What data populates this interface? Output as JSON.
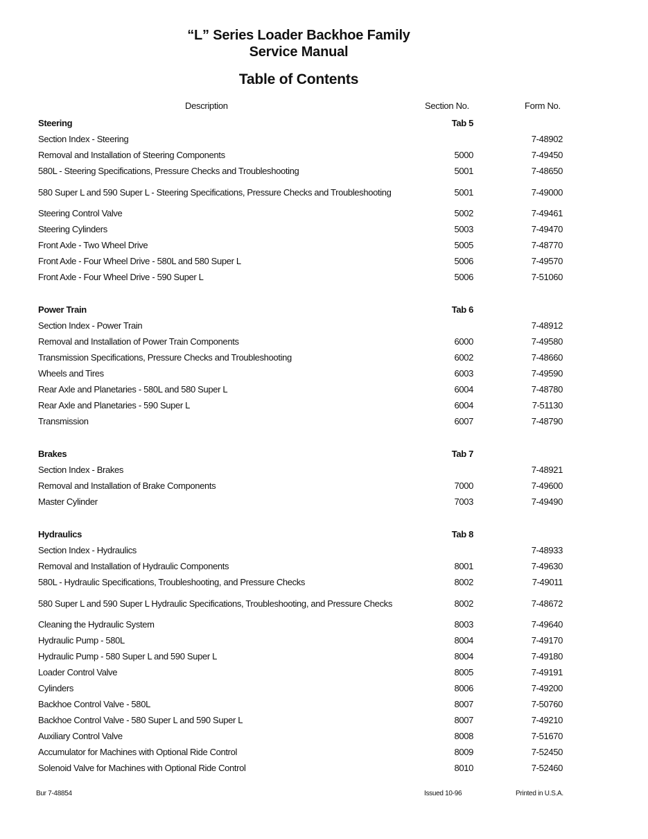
{
  "title": {
    "line1": "“L” Series Loader Backhoe Family",
    "line2": "Service Manual",
    "subtitle": "Table of Contents"
  },
  "columns": {
    "description": "Description",
    "section": "Section No.",
    "form": "Form No."
  },
  "sections": [
    {
      "name": "Steering",
      "tab": "Tab 5",
      "items": [
        {
          "desc": "Section Index - Steering",
          "section": "",
          "form": "7-48902"
        },
        {
          "desc": "Removal and Installation of Steering Components",
          "section": "5000",
          "form": "7-49450"
        },
        {
          "desc": "580L - Steering Specifications, Pressure Checks and Troubleshooting",
          "section": "5001",
          "form": "7-48650"
        },
        {
          "desc": "580 Super L and 590 Super L - Steering Specifications, Pressure Checks and Troubleshooting",
          "section": "5001",
          "form": "7-49000",
          "two_line": true
        },
        {
          "desc": "Steering Control Valve",
          "section": "5002",
          "form": "7-49461"
        },
        {
          "desc": "Steering Cylinders",
          "section": "5003",
          "form": "7-49470"
        },
        {
          "desc": "Front Axle - Two Wheel Drive",
          "section": "5005",
          "form": "7-48770"
        },
        {
          "desc": "Front Axle - Four Wheel Drive - 580L and 580 Super L",
          "section": "5006",
          "form": "7-49570"
        },
        {
          "desc": "Front Axle - Four Wheel Drive - 590 Super L",
          "section": "5006",
          "form": "7-51060"
        }
      ]
    },
    {
      "name": "Power Train",
      "tab": "Tab 6",
      "items": [
        {
          "desc": "Section Index - Power Train",
          "section": "",
          "form": "7-48912"
        },
        {
          "desc": "Removal and Installation of Power Train Components",
          "section": "6000",
          "form": "7-49580"
        },
        {
          "desc": "Transmission Specifications, Pressure Checks and Troubleshooting",
          "section": "6002",
          "form": "7-48660"
        },
        {
          "desc": "Wheels and Tires",
          "section": "6003",
          "form": "7-49590"
        },
        {
          "desc": "Rear Axle and Planetaries - 580L and 580 Super L",
          "section": "6004",
          "form": "7-48780"
        },
        {
          "desc": "Rear Axle and Planetaries - 590 Super L",
          "section": "6004",
          "form": "7-51130"
        },
        {
          "desc": "Transmission",
          "section": "6007",
          "form": "7-48790"
        }
      ]
    },
    {
      "name": "Brakes",
      "tab": "Tab 7",
      "items": [
        {
          "desc": "Section Index - Brakes",
          "section": "",
          "form": "7-48921"
        },
        {
          "desc": "Removal and Installation of Brake Components",
          "section": "7000",
          "form": "7-49600"
        },
        {
          "desc": "Master Cylinder",
          "section": "7003",
          "form": "7-49490"
        }
      ]
    },
    {
      "name": "Hydraulics",
      "tab": "Tab 8",
      "items": [
        {
          "desc": "Section Index - Hydraulics",
          "section": "",
          "form": "7-48933"
        },
        {
          "desc": "Removal and Installation of Hydraulic Components",
          "section": "8001",
          "form": "7-49630"
        },
        {
          "desc": "580L - Hydraulic Specifications, Troubleshooting, and Pressure Checks",
          "section": "8002",
          "form": "7-49011"
        },
        {
          "desc": "580 Super L and 590 Super L Hydraulic Specifications, Troubleshooting, and Pressure Checks",
          "section": "8002",
          "form": "7-48672",
          "two_line": true
        },
        {
          "desc": "Cleaning the Hydraulic System",
          "section": "8003",
          "form": "7-49640"
        },
        {
          "desc": "Hydraulic Pump - 580L",
          "section": "8004",
          "form": "7-49170"
        },
        {
          "desc": "Hydraulic Pump - 580 Super L and 590 Super L",
          "section": "8004",
          "form": "7-49180"
        },
        {
          "desc": "Loader Control Valve",
          "section": "8005",
          "form": "7-49191"
        },
        {
          "desc": "Cylinders",
          "section": "8006",
          "form": "7-49200"
        },
        {
          "desc": "Backhoe Control Valve - 580L",
          "section": "8007",
          "form": "7-50760"
        },
        {
          "desc": "Backhoe Control Valve - 580 Super L and 590 Super L",
          "section": "8007",
          "form": "7-49210"
        },
        {
          "desc": "Auxiliary Control Valve",
          "section": "8008",
          "form": "7-51670"
        },
        {
          "desc": "Accumulator for Machines with Optional Ride Control",
          "section": "8009",
          "form": "7-52450"
        },
        {
          "desc": "Solenoid Valve for Machines with Optional Ride Control",
          "section": "8010",
          "form": "7-52460"
        }
      ]
    }
  ],
  "footer": {
    "left": "Bur 7-48854",
    "issued": "Issued 10-96",
    "printed": "Printed in U.S.A."
  }
}
